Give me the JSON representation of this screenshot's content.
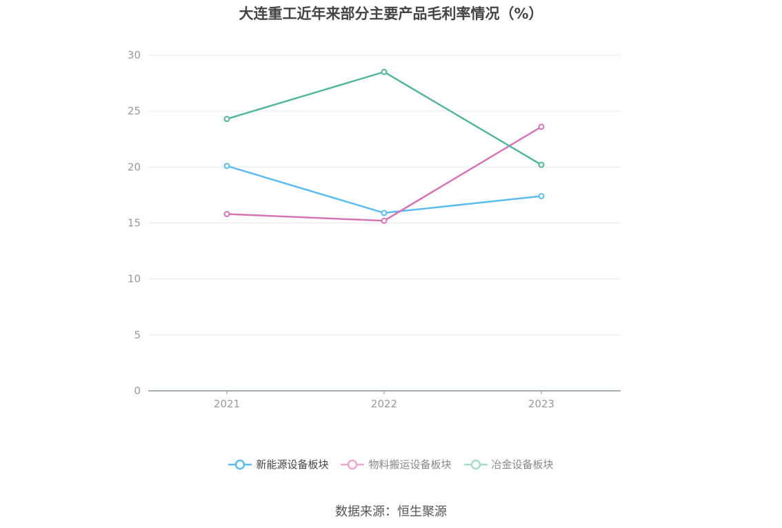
{
  "chart_data": {
    "type": "line",
    "title": "大连重工近年来部分主要产品毛利率情况（%）",
    "categories": [
      "2021",
      "2022",
      "2023"
    ],
    "ylim": [
      0,
      30
    ],
    "yticks": [
      0,
      5,
      10,
      15,
      20,
      25,
      30
    ],
    "grid": true,
    "legend_position": "bottom",
    "series": [
      {
        "name": "新能源设备板块",
        "values": [
          20.1,
          15.9,
          17.4
        ],
        "color": "#5bbcf0"
      },
      {
        "name": "物料搬运设备板块",
        "values": [
          15.8,
          15.2,
          23.6
        ],
        "color": "#d673b4"
      },
      {
        "name": "冶金设备板块",
        "values": [
          24.3,
          28.5,
          20.2
        ],
        "color": "#52b59d"
      }
    ]
  },
  "legend": {
    "items": [
      {
        "label": "新能源设备板块",
        "color": "#5bbcf0",
        "text_color": "#444444"
      },
      {
        "label": "物料搬运设备板块",
        "color": "#f0a6cf",
        "text_color": "#888888"
      },
      {
        "label": "冶金设备板块",
        "color": "#a6dcca",
        "text_color": "#888888"
      }
    ]
  },
  "source": "数据来源：恒生聚源"
}
